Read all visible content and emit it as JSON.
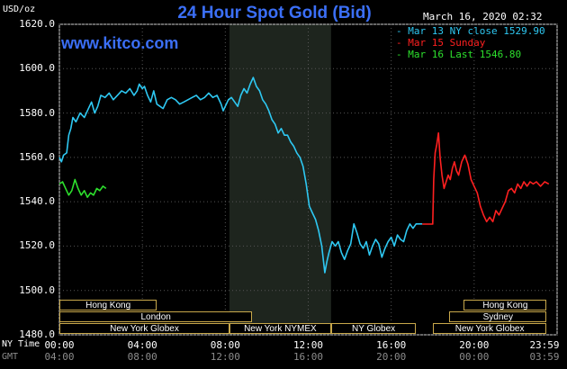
{
  "chart_data": {
    "type": "line",
    "title": "24 Hour Spot Gold (Bid)",
    "ylabel": "USD/oz",
    "timestamp": "March 16, 2020 02:32",
    "site": "www.kitco.com",
    "ylim": [
      1480,
      1620
    ],
    "yticks": [
      "1620.0",
      "1600.0",
      "1580.0",
      "1560.0",
      "1540.0",
      "1520.0",
      "1500.0",
      "1480.0"
    ],
    "x_axis": {
      "range_hours": [
        0,
        24
      ],
      "ny_label": "NY Time",
      "gmt_label": "GMT",
      "ny_ticks": [
        {
          "h": 0,
          "label": "00:00"
        },
        {
          "h": 4,
          "label": "04:00"
        },
        {
          "h": 8,
          "label": "08:00"
        },
        {
          "h": 12,
          "label": "12:00"
        },
        {
          "h": 16,
          "label": "16:00"
        },
        {
          "h": 20,
          "label": "20:00"
        },
        {
          "h": 24,
          "label": "23:59"
        }
      ],
      "gmt_ticks": [
        {
          "h": 0,
          "label": "04:00"
        },
        {
          "h": 4,
          "label": "08:00"
        },
        {
          "h": 8,
          "label": "12:00"
        },
        {
          "h": 12,
          "label": "16:00"
        },
        {
          "h": 16,
          "label": "20:00"
        },
        {
          "h": 20,
          "label": "00:00"
        },
        {
          "h": 24,
          "label": "03:59"
        }
      ]
    },
    "shaded_region_hours": [
      8.2,
      13.1
    ],
    "legend": [
      {
        "text": "Mar 13 NY close 1529.90",
        "color": "#2ec8f2"
      },
      {
        "text": "Mar 15 Sunday",
        "color": "#ff2020"
      },
      {
        "text": "Mar 16 Last 1546.80",
        "color": "#2de02d"
      }
    ],
    "series": [
      {
        "name": "Mar 13 NY close 1529.90",
        "color": "#2ec8f2",
        "points": [
          [
            0.0,
            1560
          ],
          [
            0.1,
            1558
          ],
          [
            0.2,
            1561
          ],
          [
            0.35,
            1562
          ],
          [
            0.45,
            1570
          ],
          [
            0.55,
            1573
          ],
          [
            0.65,
            1578
          ],
          [
            0.8,
            1576
          ],
          [
            1.0,
            1580
          ],
          [
            1.2,
            1578
          ],
          [
            1.4,
            1582
          ],
          [
            1.55,
            1585
          ],
          [
            1.7,
            1580
          ],
          [
            1.85,
            1583
          ],
          [
            2.0,
            1588
          ],
          [
            2.2,
            1587
          ],
          [
            2.4,
            1589
          ],
          [
            2.6,
            1586
          ],
          [
            2.8,
            1588
          ],
          [
            3.0,
            1590
          ],
          [
            3.2,
            1589
          ],
          [
            3.4,
            1591
          ],
          [
            3.6,
            1588
          ],
          [
            3.75,
            1590
          ],
          [
            3.85,
            1593
          ],
          [
            4.0,
            1591
          ],
          [
            4.1,
            1592
          ],
          [
            4.25,
            1588
          ],
          [
            4.4,
            1585
          ],
          [
            4.55,
            1590
          ],
          [
            4.7,
            1584
          ],
          [
            4.85,
            1583
          ],
          [
            5.0,
            1582
          ],
          [
            5.2,
            1586
          ],
          [
            5.4,
            1587
          ],
          [
            5.6,
            1586
          ],
          [
            5.8,
            1584
          ],
          [
            6.0,
            1585
          ],
          [
            6.2,
            1586
          ],
          [
            6.4,
            1587
          ],
          [
            6.6,
            1588
          ],
          [
            6.8,
            1586
          ],
          [
            7.0,
            1587
          ],
          [
            7.2,
            1589
          ],
          [
            7.4,
            1587
          ],
          [
            7.6,
            1588
          ],
          [
            7.8,
            1584
          ],
          [
            7.9,
            1581
          ],
          [
            8.0,
            1583
          ],
          [
            8.15,
            1586
          ],
          [
            8.3,
            1587
          ],
          [
            8.45,
            1585
          ],
          [
            8.6,
            1583
          ],
          [
            8.75,
            1588
          ],
          [
            8.9,
            1591
          ],
          [
            9.05,
            1589
          ],
          [
            9.2,
            1593
          ],
          [
            9.35,
            1596
          ],
          [
            9.5,
            1592
          ],
          [
            9.65,
            1590
          ],
          [
            9.8,
            1586
          ],
          [
            9.95,
            1584
          ],
          [
            10.1,
            1581
          ],
          [
            10.25,
            1577
          ],
          [
            10.4,
            1575
          ],
          [
            10.55,
            1571
          ],
          [
            10.7,
            1573
          ],
          [
            10.85,
            1570
          ],
          [
            11.0,
            1570
          ],
          [
            11.15,
            1567
          ],
          [
            11.3,
            1565
          ],
          [
            11.45,
            1562
          ],
          [
            11.6,
            1560
          ],
          [
            11.75,
            1556
          ],
          [
            11.9,
            1548
          ],
          [
            12.05,
            1538
          ],
          [
            12.2,
            1535
          ],
          [
            12.35,
            1532
          ],
          [
            12.5,
            1527
          ],
          [
            12.65,
            1520
          ],
          [
            12.8,
            1508
          ],
          [
            12.9,
            1513
          ],
          [
            13.0,
            1517
          ],
          [
            13.15,
            1522
          ],
          [
            13.3,
            1520
          ],
          [
            13.45,
            1522
          ],
          [
            13.6,
            1517
          ],
          [
            13.75,
            1514
          ],
          [
            13.9,
            1518
          ],
          [
            14.05,
            1521
          ],
          [
            14.2,
            1530
          ],
          [
            14.35,
            1526
          ],
          [
            14.5,
            1521
          ],
          [
            14.65,
            1519
          ],
          [
            14.8,
            1522
          ],
          [
            14.95,
            1516
          ],
          [
            15.1,
            1520
          ],
          [
            15.25,
            1523
          ],
          [
            15.4,
            1521
          ],
          [
            15.55,
            1515
          ],
          [
            15.7,
            1519
          ],
          [
            15.85,
            1522
          ],
          [
            16.0,
            1524
          ],
          [
            16.15,
            1520
          ],
          [
            16.3,
            1525
          ],
          [
            16.45,
            1523
          ],
          [
            16.6,
            1522
          ],
          [
            16.75,
            1527
          ],
          [
            16.9,
            1530
          ],
          [
            17.05,
            1528
          ],
          [
            17.2,
            1530
          ],
          [
            17.35,
            1530
          ],
          [
            17.5,
            1530
          ]
        ]
      },
      {
        "name": "Mar 15 Sunday",
        "color": "#ff2020",
        "points": [
          [
            17.5,
            1529.9
          ],
          [
            18.0,
            1529.9
          ],
          [
            18.05,
            1550
          ],
          [
            18.12,
            1562
          ],
          [
            18.2,
            1566
          ],
          [
            18.28,
            1571
          ],
          [
            18.36,
            1560
          ],
          [
            18.45,
            1552
          ],
          [
            18.55,
            1546
          ],
          [
            18.65,
            1549
          ],
          [
            18.75,
            1552
          ],
          [
            18.85,
            1550
          ],
          [
            18.95,
            1555
          ],
          [
            19.05,
            1558
          ],
          [
            19.15,
            1554
          ],
          [
            19.25,
            1552
          ],
          [
            19.4,
            1558
          ],
          [
            19.55,
            1561
          ],
          [
            19.7,
            1557
          ],
          [
            19.85,
            1550
          ],
          [
            20.0,
            1547
          ],
          [
            20.15,
            1544
          ],
          [
            20.3,
            1538
          ],
          [
            20.45,
            1534
          ],
          [
            20.6,
            1531
          ],
          [
            20.75,
            1533
          ],
          [
            20.9,
            1531
          ],
          [
            21.05,
            1536
          ],
          [
            21.2,
            1534
          ],
          [
            21.35,
            1537
          ],
          [
            21.5,
            1540
          ],
          [
            21.65,
            1545
          ],
          [
            21.8,
            1546
          ],
          [
            21.95,
            1544
          ],
          [
            22.1,
            1548
          ],
          [
            22.25,
            1546
          ],
          [
            22.4,
            1549
          ],
          [
            22.55,
            1547
          ],
          [
            22.7,
            1549
          ],
          [
            22.85,
            1548
          ],
          [
            23.0,
            1549
          ],
          [
            23.2,
            1547
          ],
          [
            23.4,
            1549
          ],
          [
            23.6,
            1548
          ]
        ]
      },
      {
        "name": "Mar 16 Last 1546.80",
        "color": "#2de02d",
        "points": [
          [
            0.0,
            1548
          ],
          [
            0.15,
            1549
          ],
          [
            0.3,
            1546
          ],
          [
            0.45,
            1543
          ],
          [
            0.6,
            1545
          ],
          [
            0.75,
            1550
          ],
          [
            0.9,
            1546
          ],
          [
            1.05,
            1543
          ],
          [
            1.2,
            1545
          ],
          [
            1.35,
            1542
          ],
          [
            1.5,
            1544
          ],
          [
            1.65,
            1543
          ],
          [
            1.8,
            1546
          ],
          [
            1.95,
            1545
          ],
          [
            2.1,
            1547
          ],
          [
            2.25,
            1546
          ]
        ]
      }
    ],
    "sessions": [
      {
        "label": "Hong Kong",
        "start": 0.0,
        "end": 4.7,
        "row": 0
      },
      {
        "label": "Hong Kong",
        "start": 19.5,
        "end": 23.5,
        "row": 0
      },
      {
        "label": "London",
        "start": 0.0,
        "end": 9.3,
        "row": 1
      },
      {
        "label": "Sydney",
        "start": 18.8,
        "end": 23.5,
        "row": 1
      },
      {
        "label": "New York Globex",
        "start": 0.0,
        "end": 8.2,
        "row": 2
      },
      {
        "label": "New York NYMEX",
        "start": 8.2,
        "end": 13.1,
        "row": 2
      },
      {
        "label": "NY Globex",
        "start": 13.1,
        "end": 17.2,
        "row": 2
      },
      {
        "label": "New York Globex",
        "start": 18.0,
        "end": 23.5,
        "row": 2
      }
    ]
  }
}
